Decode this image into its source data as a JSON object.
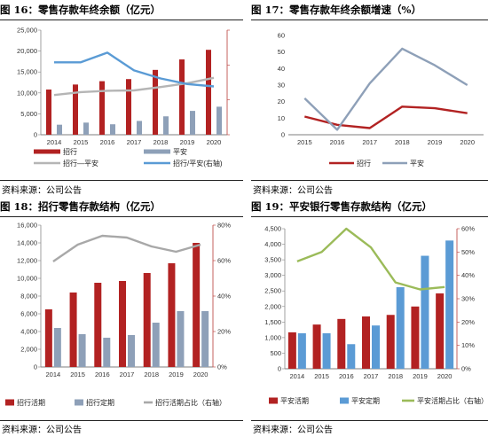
{
  "figures": [
    {
      "number": "图 16：",
      "title": "零售存款年终余额（亿元）",
      "source": "资料来源：公司公告"
    },
    {
      "number": "图 17：",
      "title": "零售存款年终余额增速（%）",
      "source": "资料来源：公司公告"
    },
    {
      "number": "图 18：",
      "title": "招行零售存款结构（亿元）",
      "source": "资料来源：公司公告"
    },
    {
      "number": "图 19：",
      "title": "平安银行零售存款结构（亿元）",
      "source": "资料来源：公司公告"
    }
  ],
  "chart_data": [
    {
      "type": "bar",
      "categories": [
        "2014",
        "2015",
        "2016",
        "2017",
        "2018",
        "2019",
        "2020"
      ],
      "ylim": [
        0,
        25000
      ],
      "yticks": [
        "0",
        "5,000",
        "10,000",
        "15,000",
        "20,000",
        "25,000"
      ],
      "y2ticks": [
        "",
        "",
        "",
        ""
      ],
      "series": [
        {
          "name": "招行",
          "kind": "bar",
          "color": "#b22222",
          "values": [
            10800,
            12000,
            12800,
            13300,
            15500,
            18000,
            20300
          ]
        },
        {
          "name": "平安",
          "kind": "bar",
          "color": "#8ea0b8",
          "values": [
            2400,
            2900,
            2500,
            3300,
            4400,
            5700,
            6700
          ]
        },
        {
          "name": "招行—平安",
          "kind": "line",
          "color": "#b5b5b5",
          "values": [
            9500,
            10200,
            10500,
            10600,
            11400,
            12300,
            13600
          ]
        },
        {
          "name": "招行/平安(右轴)",
          "kind": "line",
          "axis": "right",
          "color": "#5a9bd5",
          "y2lim": [
            0,
            6.5
          ],
          "values": [
            4.5,
            4.5,
            5.1,
            4.0,
            3.5,
            3.15,
            3.0
          ]
        }
      ]
    },
    {
      "type": "line",
      "categories": [
        "2015",
        "2016",
        "2017",
        "2018",
        "2019",
        "2020"
      ],
      "ylim": [
        0,
        60
      ],
      "yticks": [
        "0",
        "10",
        "20",
        "30",
        "40",
        "50",
        "60"
      ],
      "series": [
        {
          "name": "招行",
          "color": "#b22222",
          "values": [
            11,
            6,
            4,
            17,
            16,
            13
          ]
        },
        {
          "name": "平安",
          "color": "#8ea0b8",
          "values": [
            22,
            3,
            31,
            52,
            42,
            30
          ]
        }
      ]
    },
    {
      "type": "bar",
      "categories": [
        "2014",
        "2015",
        "2016",
        "2017",
        "2018",
        "2019",
        "2020"
      ],
      "ylim": [
        0,
        16000
      ],
      "yticks": [
        "0",
        "2,000",
        "4,000",
        "6,000",
        "8,000",
        "10,000",
        "12,000",
        "14,000",
        "16,000"
      ],
      "y2lim": [
        0,
        80
      ],
      "y2ticks": [
        "0%",
        "20%",
        "40%",
        "60%",
        "80%"
      ],
      "series": [
        {
          "name": "招行活期",
          "kind": "bar",
          "color": "#b22222",
          "values": [
            6500,
            8400,
            9500,
            9700,
            10600,
            11700,
            14000
          ]
        },
        {
          "name": "招行定期",
          "kind": "bar",
          "color": "#8ea0b8",
          "values": [
            4400,
            3700,
            3300,
            3600,
            5000,
            6300,
            6300
          ]
        },
        {
          "name": "招行活期占比（右轴）",
          "kind": "line",
          "axis": "right",
          "color": "#a8a8a8",
          "values": [
            59.5,
            69,
            74,
            73,
            68,
            65,
            69
          ]
        }
      ]
    },
    {
      "type": "bar",
      "categories": [
        "2014",
        "2015",
        "2016",
        "2017",
        "2018",
        "2019",
        "2020"
      ],
      "ylim": [
        0,
        4500
      ],
      "yticks": [
        "0",
        "500",
        "1,000",
        "1,500",
        "2,000",
        "2,500",
        "3,000",
        "3,500",
        "4,000",
        "4,500"
      ],
      "y2lim": [
        0,
        60
      ],
      "y2ticks": [
        "0%",
        "10%",
        "20%",
        "30%",
        "40%",
        "50%",
        "60%"
      ],
      "series": [
        {
          "name": "平安活期",
          "kind": "bar",
          "color": "#b22222",
          "values": [
            1170,
            1420,
            1600,
            1680,
            1730,
            2000,
            2420
          ]
        },
        {
          "name": "平安定期",
          "kind": "bar",
          "color": "#5b9bd5",
          "values": [
            1140,
            1140,
            790,
            1390,
            2620,
            3630,
            4120
          ]
        },
        {
          "name": "平安活期占比（右轴）",
          "kind": "line",
          "axis": "right",
          "color": "#9bbb59",
          "values": [
            46,
            50,
            60,
            52,
            37,
            34,
            35
          ]
        }
      ]
    }
  ]
}
